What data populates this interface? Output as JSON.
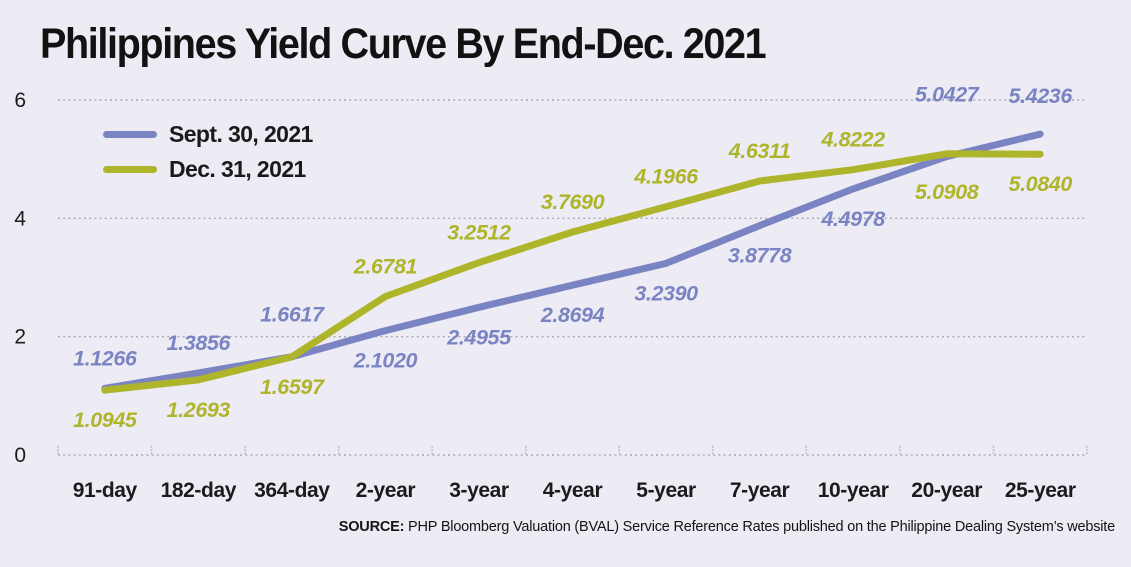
{
  "title": "Philippines Yield Curve By End-Dec. 2021",
  "source": {
    "prefix": "SOURCE:",
    "text": " PHP Bloomberg Valuation (BVAL) Service Reference Rates published on the Philippine Dealing System’s website"
  },
  "colors": {
    "background": "#edecf5",
    "gridline": "#aaa8b4",
    "axis_text": "#1b1b1b",
    "title_text": "#121212",
    "series_sept": "#7b84c2",
    "series_dec": "#aeb52a"
  },
  "chart_data": {
    "type": "line",
    "title": "Philippines Yield Curve By End-Dec. 2021",
    "categories": [
      "91-day",
      "182-day",
      "364-day",
      "2-year",
      "3-year",
      "4-year",
      "5-year",
      "7-year",
      "10-year",
      "20-year",
      "25-year"
    ],
    "series": [
      {
        "name": "Sept. 30, 2021",
        "color": "#7b84c2",
        "values": [
          1.1266,
          1.3856,
          1.6617,
          2.102,
          2.4955,
          2.8694,
          3.239,
          3.8778,
          4.4978,
          5.0427,
          5.4236
        ],
        "labels": [
          "1.1266",
          "1.3856",
          "1.6617",
          "2.1020",
          "2.4955",
          "2.8694",
          "3.2390",
          "3.8778",
          "4.4978",
          "5.0427",
          "5.4236"
        ],
        "label_side": [
          "above",
          "above",
          "above",
          "below",
          "below",
          "below",
          "below",
          "below",
          "below",
          "above",
          "above"
        ],
        "label_dy": [
          0,
          0,
          -12,
          0,
          0,
          0,
          0,
          0,
          0,
          -32,
          -8
        ]
      },
      {
        "name": "Dec. 31, 2021",
        "color": "#aeb52a",
        "values": [
          1.0945,
          1.2693,
          1.6597,
          2.6781,
          3.2512,
          3.769,
          4.1966,
          4.6311,
          4.8222,
          5.0908,
          5.084
        ],
        "labels": [
          "1.0945",
          "1.2693",
          "1.6597",
          "2.6781",
          "3.2512",
          "3.7690",
          "4.1966",
          "4.6311",
          "4.8222",
          "5.0908",
          "5.0840"
        ],
        "label_side": [
          "below",
          "below",
          "below",
          "above",
          "above",
          "above",
          "above",
          "above",
          "above",
          "below",
          "below"
        ],
        "label_dy": [
          0,
          0,
          0,
          0,
          0,
          0,
          0,
          0,
          0,
          8,
          0
        ]
      }
    ],
    "y_axis": {
      "ticks": [
        0,
        2,
        4,
        6
      ],
      "range": [
        0,
        6
      ],
      "label": ""
    },
    "x_axis": {
      "label": ""
    },
    "grid": "horizontal-dotted",
    "legend_position": "top-left-inside"
  }
}
